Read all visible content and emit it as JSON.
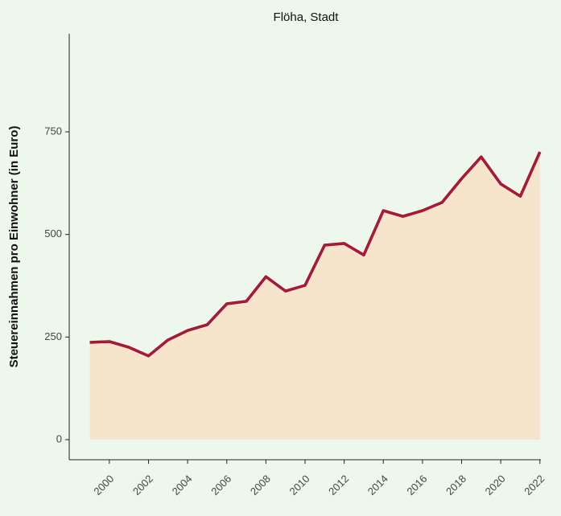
{
  "chart_data": {
    "type": "area",
    "title": "Flöha, Stadt",
    "ylabel": "Steuereinnahmen pro Einwohner (in Euro)",
    "x": [
      1999,
      2000,
      2001,
      2002,
      2003,
      2004,
      2005,
      2006,
      2007,
      2008,
      2009,
      2010,
      2011,
      2012,
      2013,
      2014,
      2015,
      2016,
      2017,
      2018,
      2019,
      2020,
      2021,
      2022
    ],
    "series": [
      {
        "name": "Steuereinnahmen",
        "color": "#c0143c",
        "fill": "#f6e4cd",
        "values": [
          237,
          239,
          225,
          204,
          243,
          266,
          280,
          331,
          337,
          397,
          362,
          376,
          474,
          478,
          450,
          558,
          544,
          558,
          578,
          636,
          689,
          623,
          593,
          701
        ]
      }
    ],
    "xlim": [
      1997.95,
      2022.05
    ],
    "xticks": [
      2000,
      2002,
      2004,
      2006,
      2008,
      2010,
      2012,
      2014,
      2016,
      2018,
      2020,
      2022
    ],
    "ylim": [
      -49,
      989
    ],
    "yticks": [
      0,
      250,
      500,
      750
    ]
  }
}
